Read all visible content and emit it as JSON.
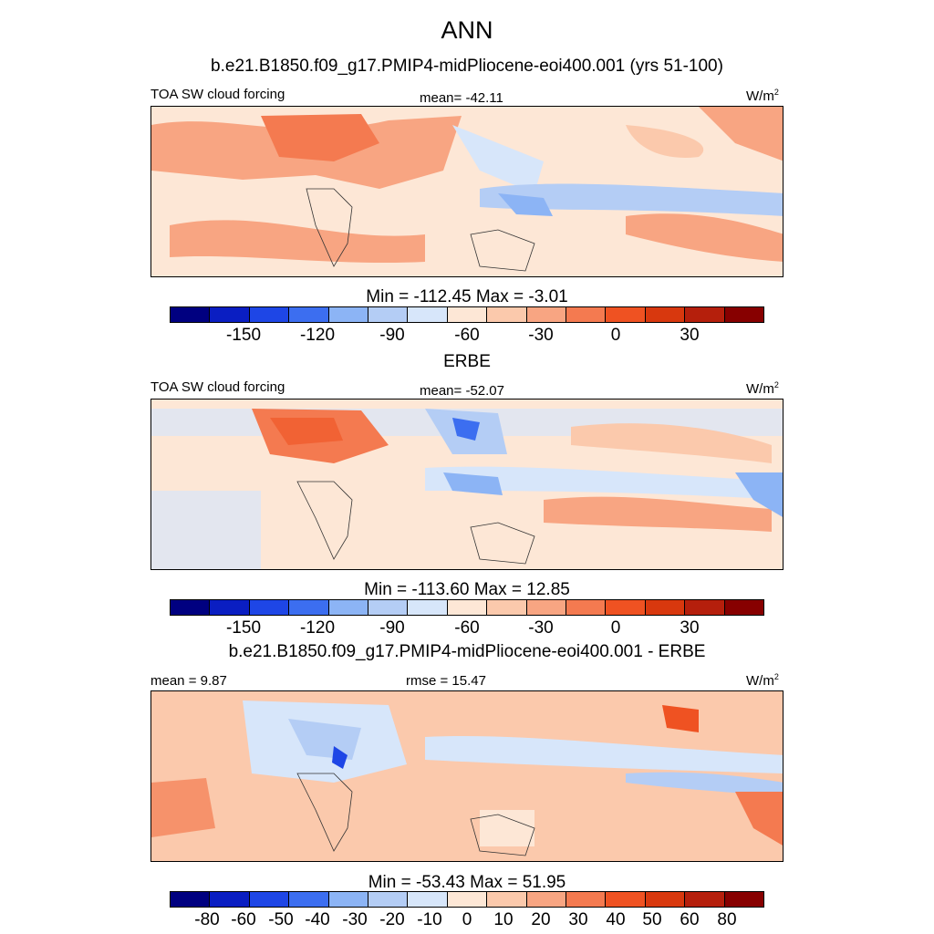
{
  "title": "ANN",
  "colors": [
    "#000080",
    "#0a1ec2",
    "#1e46e6",
    "#3c6ef0",
    "#5a8cf5",
    "#8cb4f5",
    "#b4cdf5",
    "#d7e6fa",
    "#fde7d6",
    "#fbc9ac",
    "#f8a582",
    "#f47a50",
    "#ef5222",
    "#d8380e",
    "#b51f0c",
    "#870000"
  ],
  "panels": [
    {
      "title": "b.e21.B1850.f09_g17.PMIP4-midPliocene-eoi400.001 (yrs 51-100)",
      "left_label": "TOA SW cloud forcing",
      "center_label": "mean= -42.11",
      "units": "W/m",
      "units_sup": "2",
      "minmax": "Min = -112.45 Max =  -3.01",
      "ticks": [
        "-150",
        "-120",
        "-90",
        "-60",
        "-30",
        "0",
        "30"
      ],
      "map_name": "model-map"
    },
    {
      "title": "ERBE",
      "left_label": "TOA SW cloud forcing",
      "center_label": "mean= -52.07",
      "units": "W/m",
      "units_sup": "2",
      "minmax": "Min = -113.60 Max =  12.85",
      "ticks": [
        "-150",
        "-120",
        "-90",
        "-60",
        "-30",
        "0",
        "30"
      ],
      "map_name": "obs-map"
    },
    {
      "title": "b.e21.B1850.f09_g17.PMIP4-midPliocene-eoi400.001 - ERBE",
      "left_label": "mean =   9.87",
      "center_label": "rmse =  15.47",
      "units": "W/m",
      "units_sup": "2",
      "minmax": "Min = -53.43 Max =  51.95",
      "ticks": [
        "-80",
        "-60",
        "-50",
        "-40",
        "-30",
        "-20",
        "-10",
        "0",
        "10",
        "20",
        "30",
        "40",
        "50",
        "60",
        "80"
      ],
      "map_name": "difference-map"
    }
  ]
}
